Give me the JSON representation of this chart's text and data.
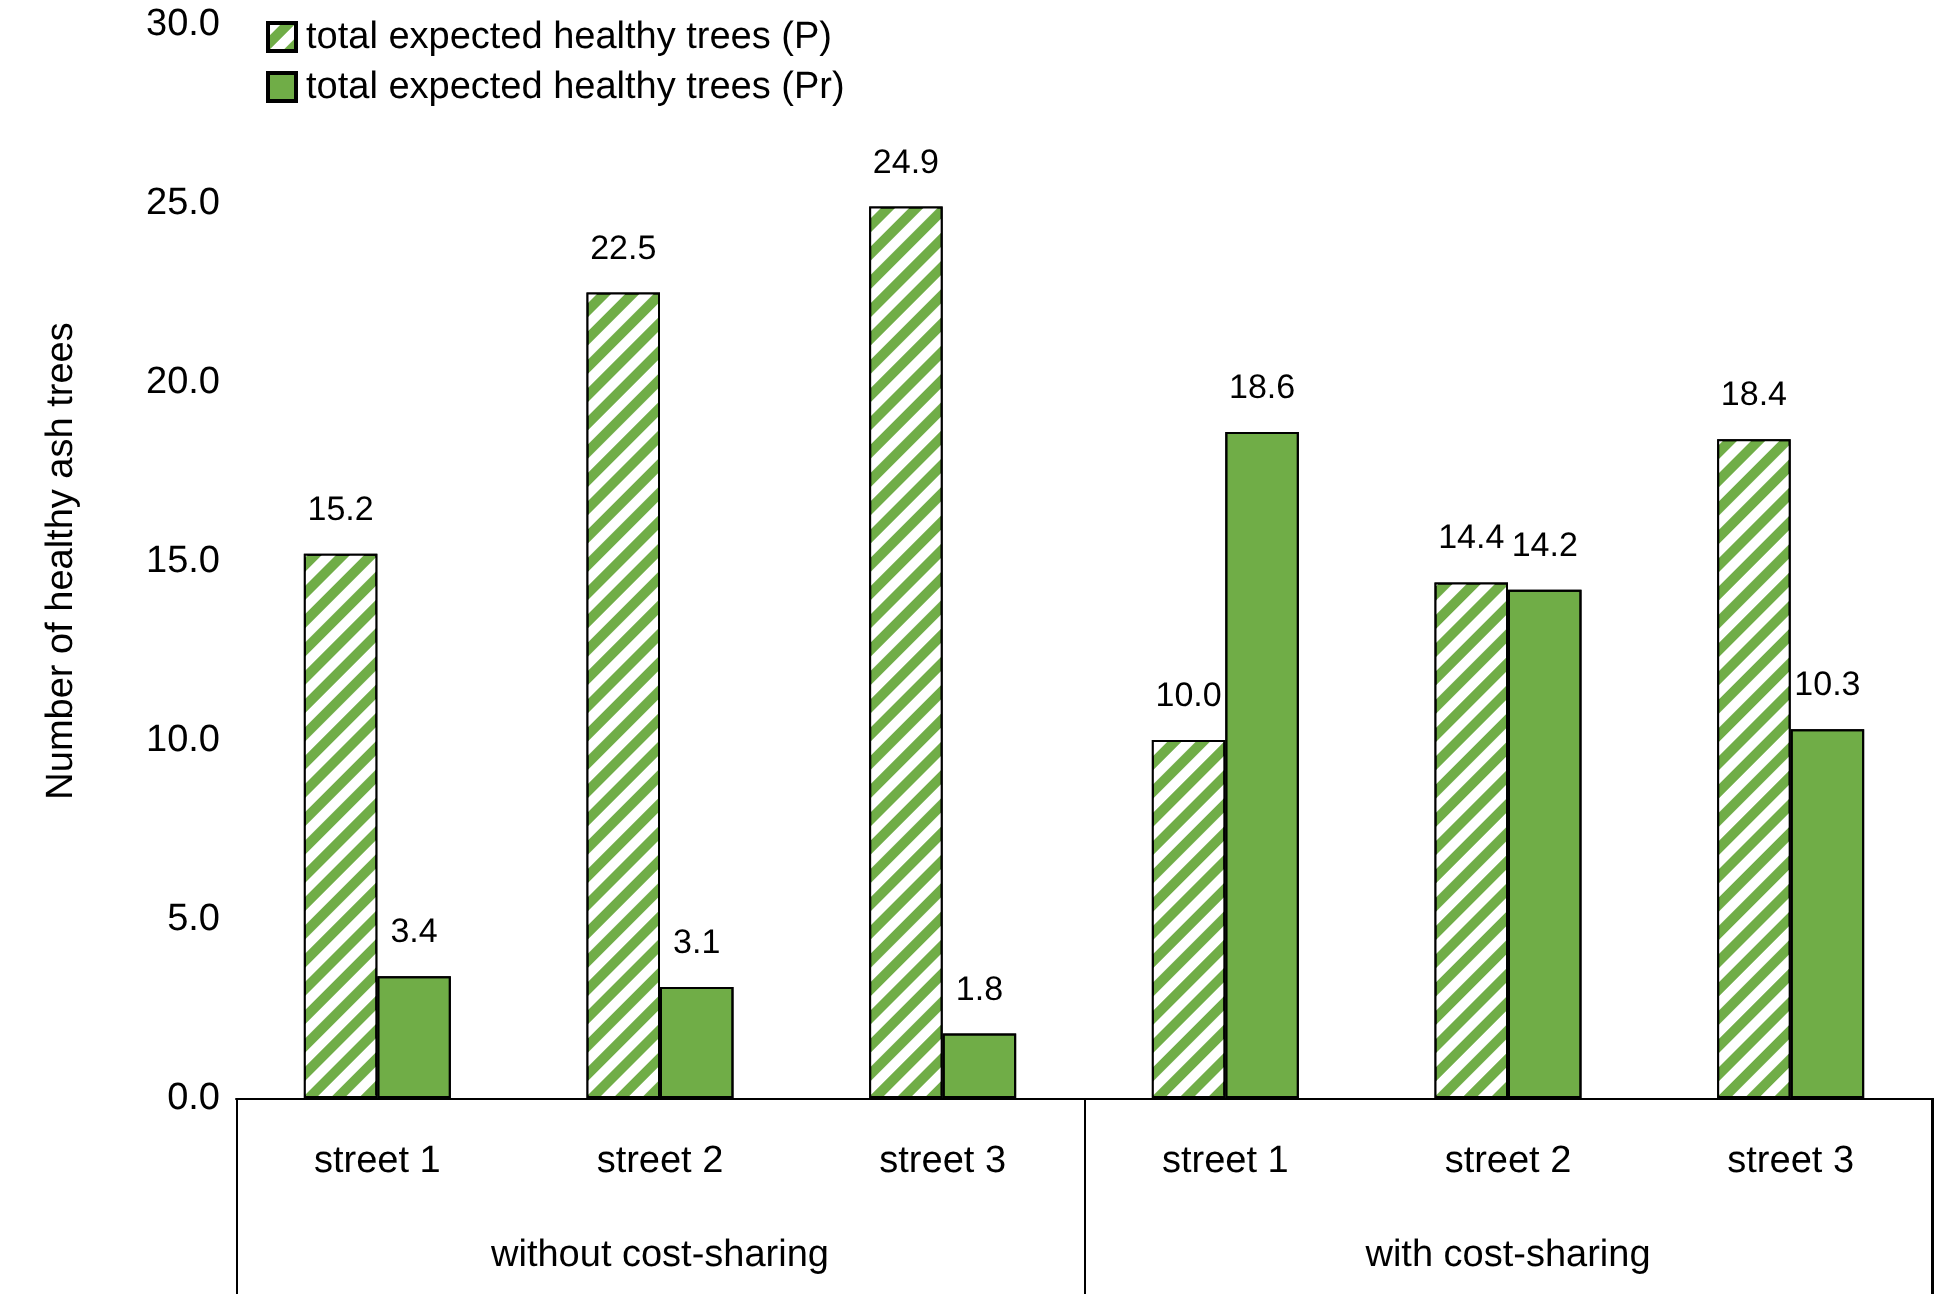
{
  "chart_data": {
    "type": "bar",
    "ylabel": "Number of healthy ash trees",
    "categories": [
      "street 1",
      "street 2",
      "street 3",
      "street 1",
      "street 2",
      "street 3"
    ],
    "series": [
      {
        "name": "total expected healthy trees (P)",
        "color": "#70ad47",
        "values": [
          15.2,
          22.5,
          24.9,
          10.0,
          14.4,
          18.4
        ],
        "value_labels": [
          "15.2",
          "22.5",
          "24.9",
          "10.0",
          "14.4",
          "18.4"
        ]
      },
      {
        "name": "total expected healthy trees (Pr)",
        "color": "#70ad47",
        "values": [
          3.4,
          3.1,
          1.8,
          18.6,
          14.2,
          10.3
        ],
        "value_labels": [
          "3.4",
          "3.1",
          "1.8",
          "18.6",
          "14.2",
          "10.3"
        ]
      }
    ],
    "annotations": [
      "without cost-sharing",
      "with cost-sharing"
    ],
    "ylim": [
      0,
      30
    ],
    "yticks": [
      {
        "value": 0,
        "label": "0.0"
      },
      {
        "value": 5,
        "label": "5.0"
      },
      {
        "value": 10,
        "label": "10.0"
      },
      {
        "value": 15,
        "label": "15.0"
      },
      {
        "value": 20,
        "label": "20.0"
      },
      {
        "value": 25,
        "label": "25.0"
      },
      {
        "value": 30,
        "label": "30.0"
      }
    ],
    "grid": false,
    "legend": "top left"
  }
}
